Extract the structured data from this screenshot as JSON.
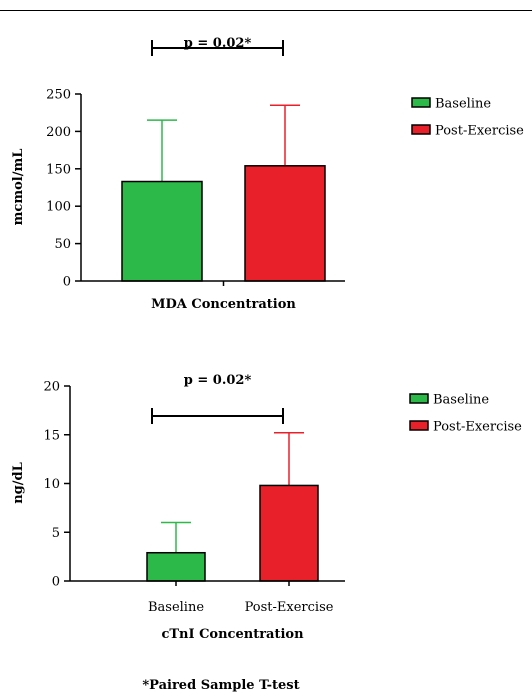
{
  "colors": {
    "baseline": "#2db84a",
    "post_exercise": "#e8202a",
    "axis": "#000000"
  },
  "footnote": "*Paired Sample T-test",
  "chart_data": [
    {
      "type": "bar",
      "title": "",
      "xlabel": "MDA Concentration",
      "ylabel": "mcmol/mL",
      "ylim": [
        0,
        250
      ],
      "yticks": [
        0,
        50,
        100,
        150,
        200,
        250
      ],
      "categories": [
        "Baseline",
        "Post-Exercise"
      ],
      "show_category_labels": false,
      "values": [
        133,
        154
      ],
      "error_upper": [
        215,
        235
      ],
      "significance": {
        "text": "p = 0.02*",
        "between": [
          0,
          1
        ]
      },
      "legend": {
        "placement": "right",
        "entries": [
          "Baseline",
          "Post-Exercise"
        ]
      },
      "grid": false
    },
    {
      "type": "bar",
      "title": "",
      "xlabel": "cTnI Concentration",
      "ylabel": "ng/dL",
      "ylim": [
        0,
        20
      ],
      "yticks": [
        0,
        5,
        10,
        15,
        20
      ],
      "categories": [
        "Baseline",
        "Post-Exercise"
      ],
      "show_category_labels": true,
      "values": [
        2.9,
        9.8
      ],
      "error_upper": [
        6.0,
        15.2
      ],
      "significance": {
        "text": "p = 0.02*",
        "between": [
          0,
          1
        ]
      },
      "legend": {
        "placement": "right",
        "entries": [
          "Baseline",
          "Post-Exercise"
        ]
      },
      "grid": false
    }
  ]
}
